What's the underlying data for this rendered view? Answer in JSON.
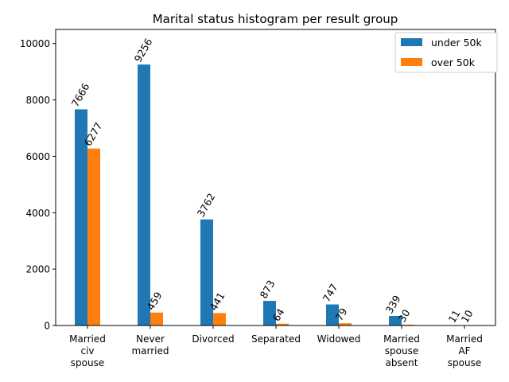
{
  "chart_data": {
    "type": "bar",
    "title": "Marital status histogram per result group",
    "xlabel": "",
    "ylabel": "",
    "categories": [
      [
        "Married",
        "civ",
        "spouse"
      ],
      [
        "Never",
        "married"
      ],
      [
        "Divorced"
      ],
      [
        "Separated"
      ],
      [
        "Widowed"
      ],
      [
        "Married",
        "spouse",
        "absent"
      ],
      [
        "Married",
        "AF",
        "spouse"
      ]
    ],
    "series": [
      {
        "name": "under 50k",
        "color": "#1f77b4",
        "values": [
          7666,
          9256,
          3762,
          873,
          747,
          339,
          11
        ]
      },
      {
        "name": "over 50k",
        "color": "#ff7f0e",
        "values": [
          6277,
          459,
          441,
          64,
          79,
          30,
          10
        ]
      }
    ],
    "ylim": [
      0,
      10500
    ],
    "yticks": [
      0,
      2000,
      4000,
      6000,
      8000,
      10000
    ],
    "grid": false,
    "legend_position": "top-right"
  }
}
